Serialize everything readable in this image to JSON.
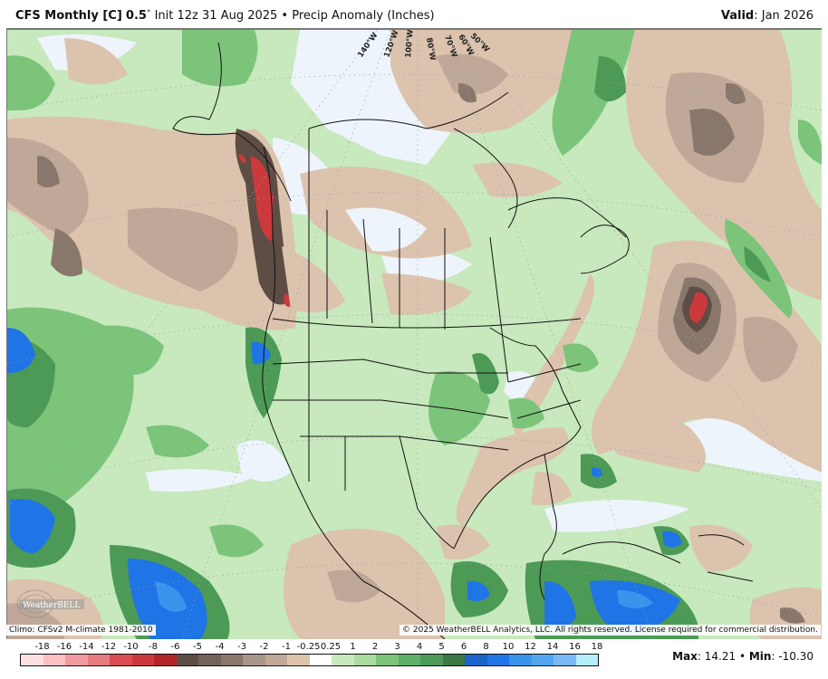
{
  "header": {
    "model": "CFS Monthly [C]",
    "resolution": "0.5",
    "degree_symbol": "°",
    "init": "Init 12z 31 Aug 2025",
    "separator": "•",
    "product": "Precip Anomaly (Inches)",
    "valid_label": "Valid",
    "valid_value": ": Jan 2026"
  },
  "map": {
    "longitude_labels": [
      "140°W",
      "120°W",
      "100°W",
      "80°W",
      "70°W",
      "60°W",
      "50°W"
    ],
    "climo_note": "Climo: CFSv2 M-climate 1981-2010",
    "copyright": "© 2025 WeatherBELL Analytics, LLC. All rights reserved. License required for commercial distribution.",
    "watermark": "WeatherBELL",
    "watermark_sub": "Analytics LLC"
  },
  "legend": {
    "ticks": [
      "-18",
      "-16",
      "-14",
      "-12",
      "-10",
      "-8",
      "-6",
      "-5",
      "-4",
      "-3",
      "-2",
      "-1",
      "-0.25",
      "0.25",
      "1",
      "2",
      "3",
      "4",
      "5",
      "6",
      "8",
      "10",
      "12",
      "14",
      "16",
      "18"
    ],
    "colors": [
      "#fde0e2",
      "#fbc0c4",
      "#f19aa0",
      "#e57b80",
      "#da4d52",
      "#cc393d",
      "#b22426",
      "#5e4d44",
      "#73625a",
      "#8a776c",
      "#a8958a",
      "#bfa898",
      "#dcc3ae",
      "#ffffff",
      "#c7e9bd",
      "#a9dc9e",
      "#7cc47a",
      "#5eb064",
      "#4c9a56",
      "#3b7845",
      "#1a63c9",
      "#1f74e6",
      "#3a94ec",
      "#52a6f0",
      "#7ab8f5",
      "#b5eefb"
    ]
  },
  "stats": {
    "max_label": "Max",
    "max_value": ": 14.21",
    "separator": " • ",
    "min_label": "Min",
    "min_value": ": -10.30"
  },
  "colors": {
    "neutral": "#eef4fc",
    "dry_light": "#dcc3ae",
    "dry_mid": "#bfa898",
    "dry_dark": "#8a776c",
    "dry_darkest": "#5e4d44",
    "dry_extreme": "#cc393d",
    "wet_light": "#c7e9bd",
    "wet_mid": "#7cc47a",
    "wet_dark": "#4c9a56",
    "wet_extreme": "#1f74e6"
  }
}
